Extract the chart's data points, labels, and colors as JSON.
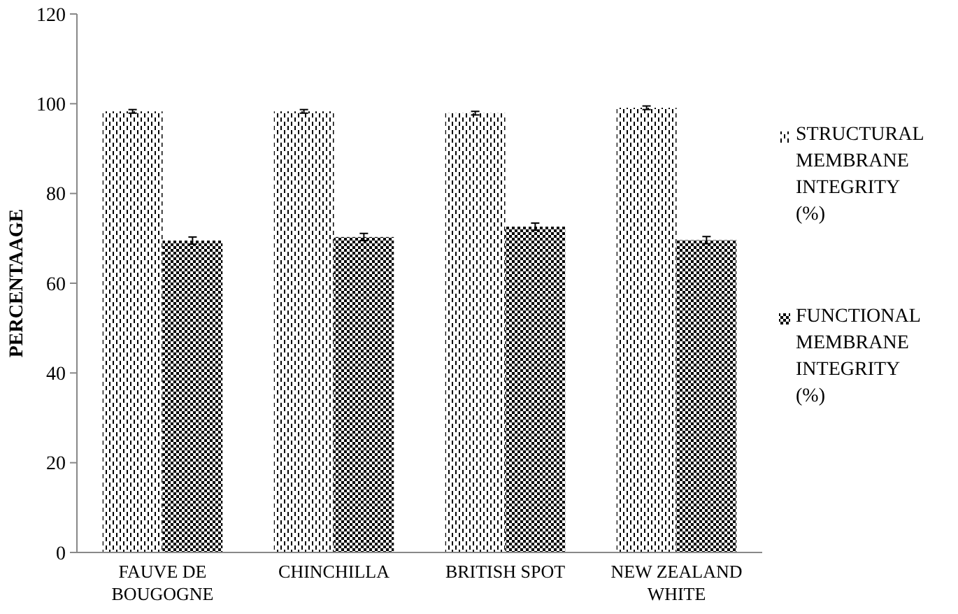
{
  "chart_data": {
    "type": "bar",
    "ylabel": "PERCENTAAGE",
    "categories": [
      "FAUVE DE BOUGOGNE",
      "CHINCHILLA",
      "BRITISH SPOT",
      "NEW ZEALAND WHITE"
    ],
    "series": [
      {
        "name": "STRUCTURAL MEMBRANE INTEGRITY (%)",
        "color": "#000000",
        "values": [
          98.3,
          98.3,
          97.9,
          99.1
        ],
        "errors": [
          0.4,
          0.4,
          0.4,
          0.4
        ]
      },
      {
        "name": "FUNCTIONAL MEMBRANE INTEGRITY (%)",
        "color": "#000000",
        "values": [
          69.5,
          70.3,
          72.6,
          69.6
        ],
        "errors": [
          0.8,
          0.8,
          0.8,
          0.8
        ]
      }
    ],
    "ylim": [
      0,
      120
    ],
    "yticks": [
      0,
      20,
      40,
      60,
      80,
      100,
      120
    ],
    "legend": "right",
    "grid": false
  }
}
